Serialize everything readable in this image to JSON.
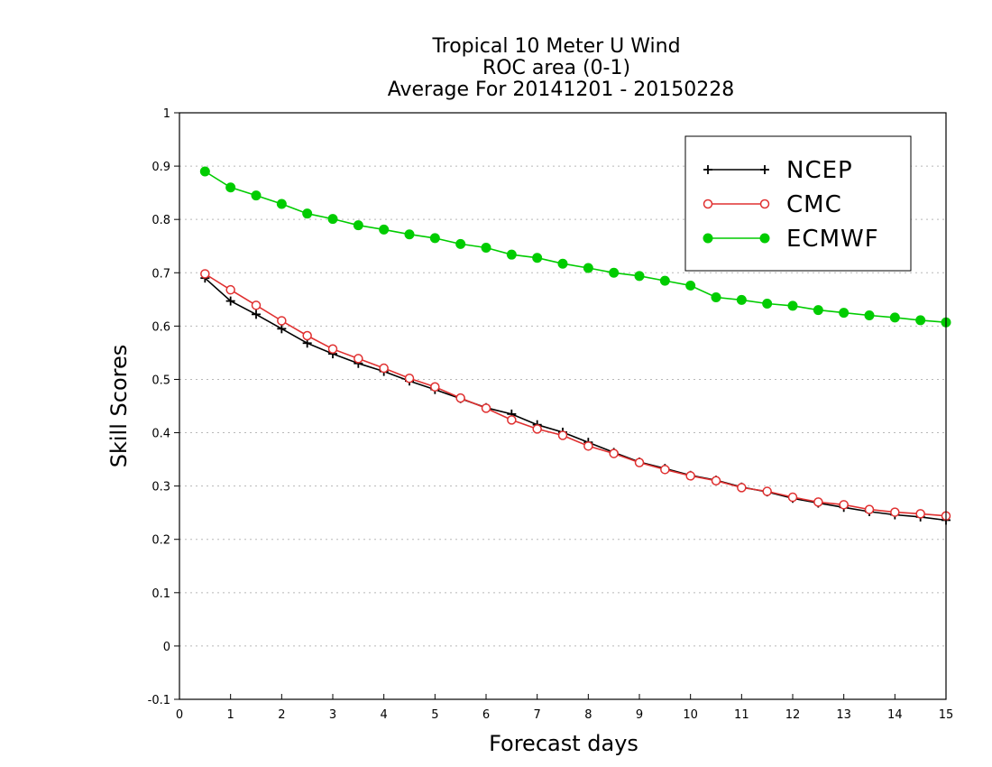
{
  "chart_data": {
    "type": "line",
    "title": [
      "Tropical 10 Meter U Wind",
      "ROC area (0-1)",
      "Average For 20141201 - 20150228"
    ],
    "xlabel": "Forecast days",
    "ylabel": "Skill Scores",
    "xlim": [
      0,
      15
    ],
    "ylim": [
      -0.1,
      1
    ],
    "xticks": [
      "0",
      "1",
      "2",
      "3",
      "4",
      "5",
      "6",
      "7",
      "8",
      "9",
      "10",
      "11",
      "12",
      "13",
      "14",
      "15"
    ],
    "yticks": [
      "-0.1",
      "0",
      "0.1",
      "0.2",
      "0.3",
      "0.4",
      "0.5",
      "0.6",
      "0.7",
      "0.8",
      "0.9",
      "1"
    ],
    "grid": "horizontal dotted",
    "legend_position": "top-right",
    "x": [
      0.5,
      1,
      1.5,
      2,
      2.5,
      3,
      3.5,
      4,
      4.5,
      5,
      5.5,
      6,
      6.5,
      7,
      7.5,
      8,
      8.5,
      9,
      9.5,
      10,
      10.5,
      11,
      11.5,
      12,
      12.5,
      13,
      13.5,
      14,
      14.5,
      15
    ],
    "series": [
      {
        "name": "NCEP",
        "color": "#000000",
        "marker": "plus",
        "values": [
          0.69,
          0.647,
          0.622,
          0.595,
          0.568,
          0.548,
          0.53,
          0.515,
          0.497,
          0.481,
          0.464,
          0.447,
          0.435,
          0.415,
          0.401,
          0.382,
          0.363,
          0.345,
          0.333,
          0.32,
          0.311,
          0.298,
          0.289,
          0.277,
          0.268,
          0.26,
          0.252,
          0.246,
          0.242,
          0.236
        ]
      },
      {
        "name": "CMC",
        "color": "#e03030",
        "marker": "open-circle",
        "values": [
          0.698,
          0.668,
          0.639,
          0.61,
          0.582,
          0.557,
          0.539,
          0.521,
          0.502,
          0.486,
          0.465,
          0.446,
          0.424,
          0.407,
          0.395,
          0.375,
          0.361,
          0.344,
          0.331,
          0.319,
          0.31,
          0.297,
          0.29,
          0.279,
          0.27,
          0.265,
          0.256,
          0.251,
          0.248,
          0.244
        ]
      },
      {
        "name": "ECMWF",
        "color": "#00cc00",
        "marker": "filled-circle",
        "values": [
          0.89,
          0.86,
          0.845,
          0.829,
          0.811,
          0.801,
          0.789,
          0.781,
          0.772,
          0.765,
          0.754,
          0.747,
          0.734,
          0.728,
          0.717,
          0.709,
          0.7,
          0.694,
          0.685,
          0.676,
          0.654,
          0.649,
          0.642,
          0.638,
          0.63,
          0.625,
          0.62,
          0.616,
          0.611,
          0.607
        ]
      }
    ]
  }
}
